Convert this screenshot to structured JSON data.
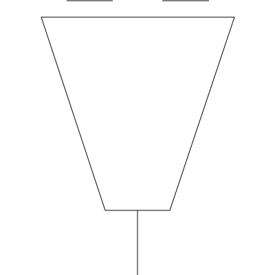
{
  "diagram": {
    "stroke_color": "#000000",
    "background_color": "#ffffff"
  }
}
